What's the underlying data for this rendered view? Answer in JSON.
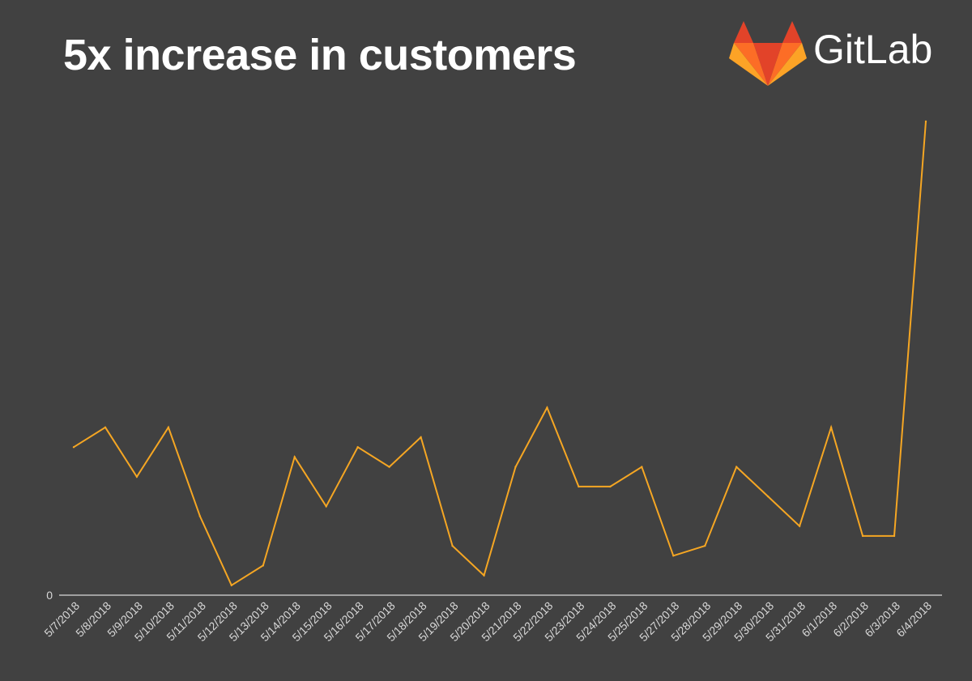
{
  "title": "5x increase in customers",
  "logo": {
    "word": "GitLab",
    "icon": "gitlab-tanuki-icon",
    "colors": [
      "#e24329",
      "#fc6d26",
      "#fca326"
    ]
  },
  "chart_data": {
    "type": "line",
    "title": "5x increase in customers",
    "xlabel": "",
    "ylabel": "",
    "categories": [
      "5/7/2018",
      "5/8/2018",
      "5/9/2018",
      "5/10/2018",
      "5/11/2018",
      "5/12/2018",
      "5/13/2018",
      "5/14/2018",
      "5/15/2018",
      "5/16/2018",
      "5/17/2018",
      "5/18/2018",
      "5/19/2018",
      "5/20/2018",
      "5/21/2018",
      "5/22/2018",
      "5/23/2018",
      "5/24/2018",
      "5/25/2018",
      "5/27/2018",
      "5/28/2018",
      "5/29/2018",
      "5/30/2018",
      "5/31/2018",
      "6/1/2018",
      "6/2/2018",
      "6/3/2018",
      "6/4/2018"
    ],
    "series": [
      {
        "values": [
          15,
          17,
          12,
          17,
          8,
          1,
          3,
          14,
          9,
          15,
          13,
          16,
          5,
          2,
          13,
          19,
          11,
          11,
          13,
          4,
          5,
          13,
          10,
          7,
          17,
          6,
          6,
          48
        ]
      }
    ],
    "y_ticks": [
      0
    ],
    "ylim": [
      0,
      48
    ],
    "line_color": "#f5a623",
    "axis_color": "#ffffff",
    "tick_label_color": "#d8d8d8",
    "grid": false,
    "legend": "none"
  }
}
